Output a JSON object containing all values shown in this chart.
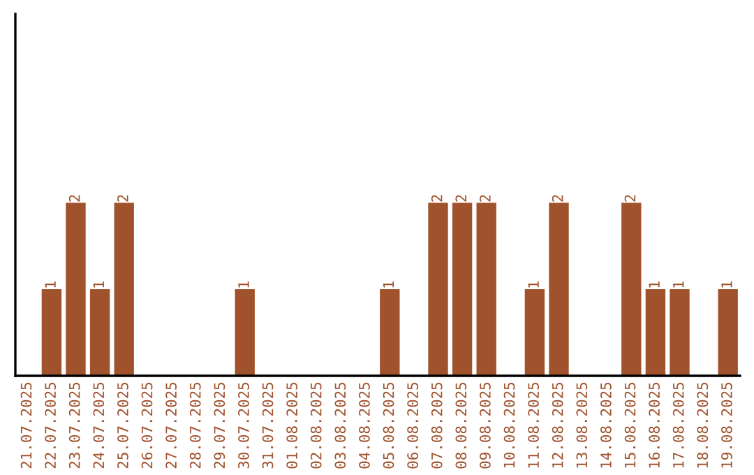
{
  "chart_data": {
    "type": "bar",
    "categories": [
      "21.07.2025",
      "22.07.2025",
      "23.07.2025",
      "24.07.2025",
      "25.07.2025",
      "26.07.2025",
      "27.07.2025",
      "28.07.2025",
      "29.07.2025",
      "30.07.2025",
      "31.07.2025",
      "01.08.2025",
      "02.08.2025",
      "03.08.2025",
      "04.08.2025",
      "05.08.2025",
      "06.08.2025",
      "07.08.2025",
      "08.08.2025",
      "09.08.2025",
      "10.08.2025",
      "11.08.2025",
      "12.08.2025",
      "13.08.2025",
      "14.08.2025",
      "15.08.2025",
      "16.08.2025",
      "17.08.2025",
      "18.08.2025",
      "19.08.2025"
    ],
    "values": [
      0,
      1,
      2,
      1,
      2,
      0,
      0,
      0,
      0,
      1,
      0,
      0,
      0,
      0,
      0,
      1,
      0,
      2,
      2,
      2,
      0,
      1,
      2,
      0,
      0,
      2,
      1,
      1,
      0,
      1
    ],
    "value_labels": [
      null,
      "1",
      "2",
      "1",
      "2",
      null,
      null,
      null,
      null,
      "1",
      null,
      null,
      null,
      null,
      null,
      "1",
      null,
      "2",
      "2",
      "2",
      null,
      "1",
      "2",
      null,
      null,
      "2",
      "1",
      "1",
      null,
      "1"
    ],
    "color": "#a0522d",
    "grid": false,
    "legend": false,
    "tick_labels": "x"
  }
}
